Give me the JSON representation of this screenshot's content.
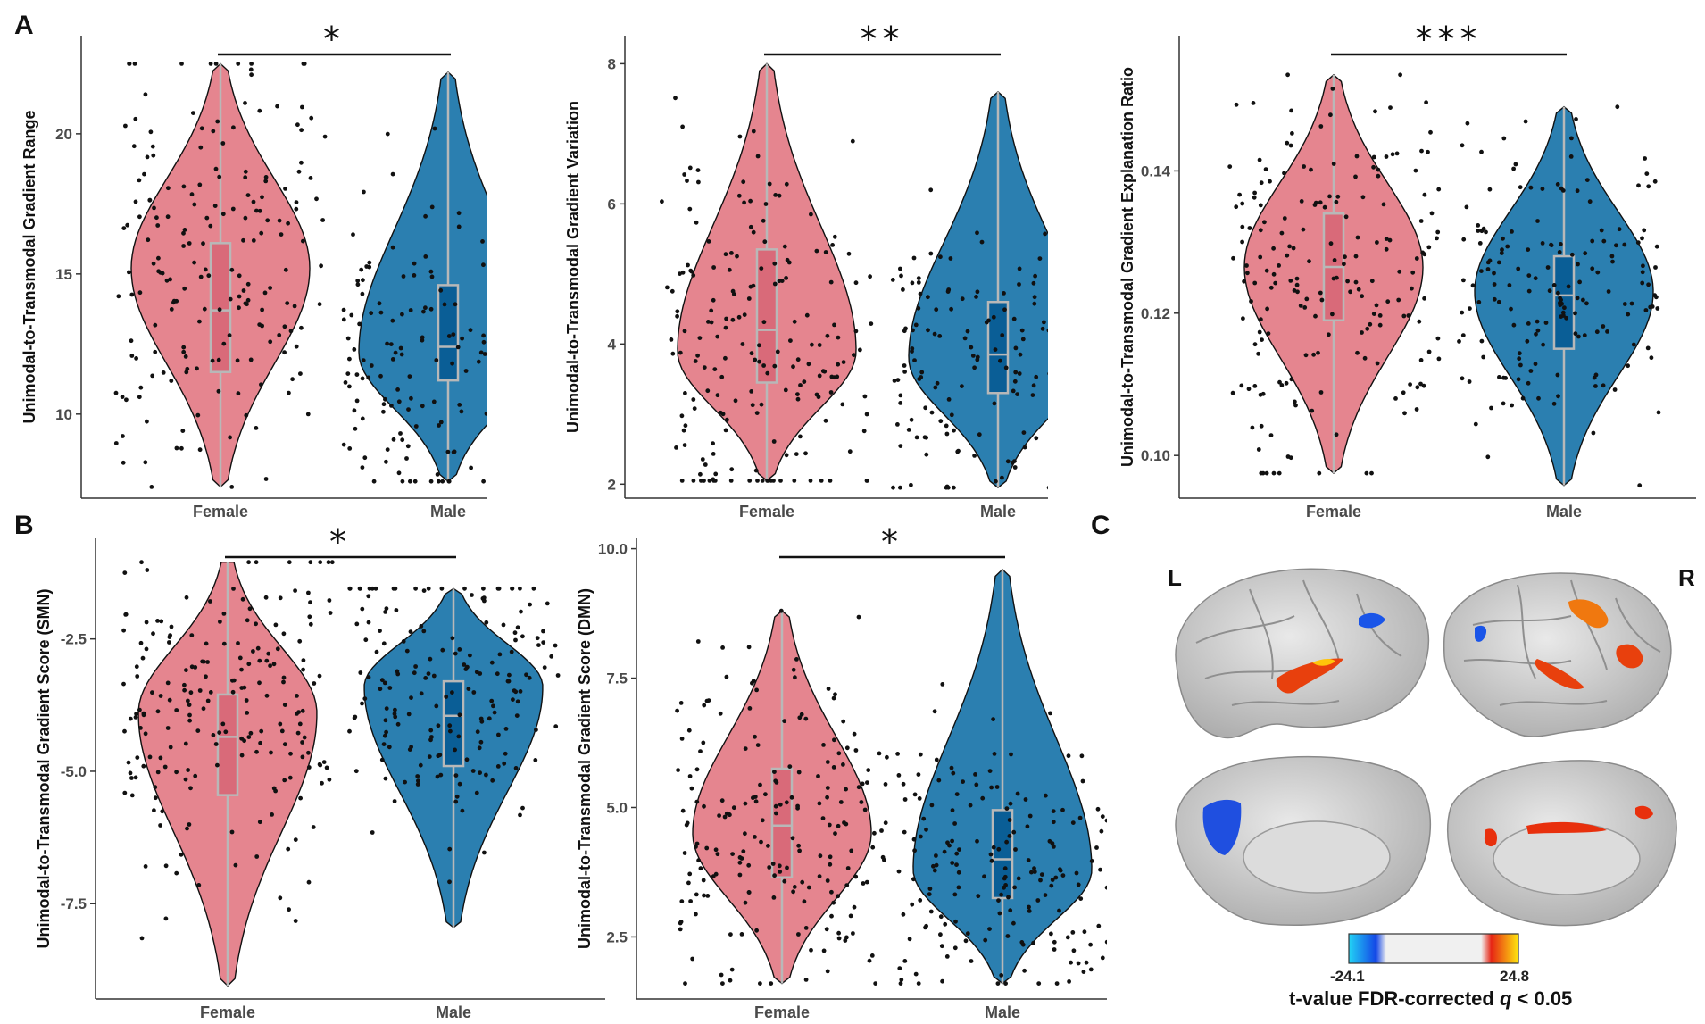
{
  "colors": {
    "female_fill": "#e5858f",
    "male_fill": "#2b7fb0",
    "female_box": "#d96a79",
    "male_box": "#0a5e96",
    "box_line": "#b8b8b8",
    "point": "#111111"
  },
  "panels": {
    "a": "A",
    "b": "B",
    "c": "C"
  },
  "chart_data": [
    {
      "id": "a1",
      "type": "violin",
      "ylabel": "Unimodal-to-Transmodal Gradient Range",
      "categories": [
        "Female",
        "Male"
      ],
      "ylim": [
        7,
        23.5
      ],
      "yticks": [
        10,
        15,
        20
      ],
      "ytick_labels": [
        "10",
        "15",
        "20"
      ],
      "significance": "*",
      "series": [
        {
          "name": "Female",
          "min": 7.4,
          "q1": 11.5,
          "median": 13.7,
          "q3": 16.1,
          "max": 22.5,
          "mode": 15.2,
          "n": 190,
          "seed": 11
        },
        {
          "name": "Male",
          "min": 7.6,
          "q1": 11.2,
          "median": 12.4,
          "q3": 14.6,
          "max": 22.2,
          "mode": 12.2,
          "n": 170,
          "seed": 12
        }
      ]
    },
    {
      "id": "a2",
      "type": "violin",
      "ylabel": "Unimodal-to-Transmodal Gradient Variation",
      "categories": [
        "Female",
        "Male"
      ],
      "ylim": [
        1.8,
        8.4
      ],
      "yticks": [
        2,
        4,
        6,
        8
      ],
      "ytick_labels": [
        "2",
        "4",
        "6",
        "8"
      ],
      "significance": "**",
      "series": [
        {
          "name": "Female",
          "min": 2.05,
          "q1": 3.45,
          "median": 4.2,
          "q3": 5.35,
          "max": 8.0,
          "mode": 3.9,
          "n": 190,
          "seed": 21
        },
        {
          "name": "Male",
          "min": 1.95,
          "q1": 3.3,
          "median": 3.85,
          "q3": 4.6,
          "max": 7.6,
          "mode": 3.8,
          "n": 170,
          "seed": 22
        }
      ]
    },
    {
      "id": "a3",
      "type": "violin",
      "ylabel": "Unimodal-to-Transmodal Gradient Explanation Ratio",
      "categories": [
        "Female",
        "Male"
      ],
      "ylim": [
        0.094,
        0.159
      ],
      "yticks": [
        0.1,
        0.12,
        0.14
      ],
      "ytick_labels": [
        "0.10",
        "0.12",
        "0.14"
      ],
      "significance": "***",
      "series": [
        {
          "name": "Female",
          "min": 0.0975,
          "q1": 0.119,
          "median": 0.1265,
          "q3": 0.134,
          "max": 0.1535,
          "mode": 0.1265,
          "n": 190,
          "seed": 31
        },
        {
          "name": "Male",
          "min": 0.0958,
          "q1": 0.115,
          "median": 0.1225,
          "q3": 0.128,
          "max": 0.149,
          "mode": 0.123,
          "n": 170,
          "seed": 32
        }
      ]
    },
    {
      "id": "b1",
      "type": "violin",
      "ylabel": "Unimodal-to-Transmodal Gradient Score (SMN)",
      "categories": [
        "Female",
        "Male"
      ],
      "ylim": [
        -9.3,
        -0.6
      ],
      "yticks": [
        -7.5,
        -5.0,
        -2.5
      ],
      "ytick_labels": [
        "-7.5",
        "-5.0",
        "-2.5"
      ],
      "significance": "*",
      "series": [
        {
          "name": "Female",
          "min": -9.05,
          "q1": -5.45,
          "median": -4.35,
          "q3": -3.55,
          "max": -1.05,
          "mode": -3.9,
          "n": 200,
          "seed": 41
        },
        {
          "name": "Male",
          "min": -7.95,
          "q1": -4.9,
          "median": -3.95,
          "q3": -3.3,
          "max": -1.55,
          "mode": -3.4,
          "n": 180,
          "seed": 42
        }
      ]
    },
    {
      "id": "b2",
      "type": "violin",
      "ylabel": "Unimodal-to-Transmodal Gradient Score (DMN)",
      "categories": [
        "Female",
        "Male"
      ],
      "ylim": [
        1.3,
        10.2
      ],
      "yticks": [
        2.5,
        5.0,
        7.5,
        10.0
      ],
      "ytick_labels": [
        "2.5",
        "5.0",
        "7.5",
        "10.0"
      ],
      "significance": "*",
      "series": [
        {
          "name": "Female",
          "min": 1.6,
          "q1": 3.65,
          "median": 4.65,
          "q3": 5.75,
          "max": 8.8,
          "mode": 4.5,
          "n": 200,
          "seed": 51
        },
        {
          "name": "Male",
          "min": 1.6,
          "q1": 3.25,
          "median": 4.0,
          "q3": 4.95,
          "max": 9.6,
          "mode": 3.8,
          "n": 180,
          "seed": 52
        }
      ]
    }
  ],
  "brain": {
    "left": "L",
    "right": "R",
    "colorbar_min": "-24.1",
    "colorbar_max": "24.8",
    "caption_prefix": "t-value  FDR-corrected ",
    "caption_q": "q",
    "caption_suffix": " < 0.05"
  }
}
